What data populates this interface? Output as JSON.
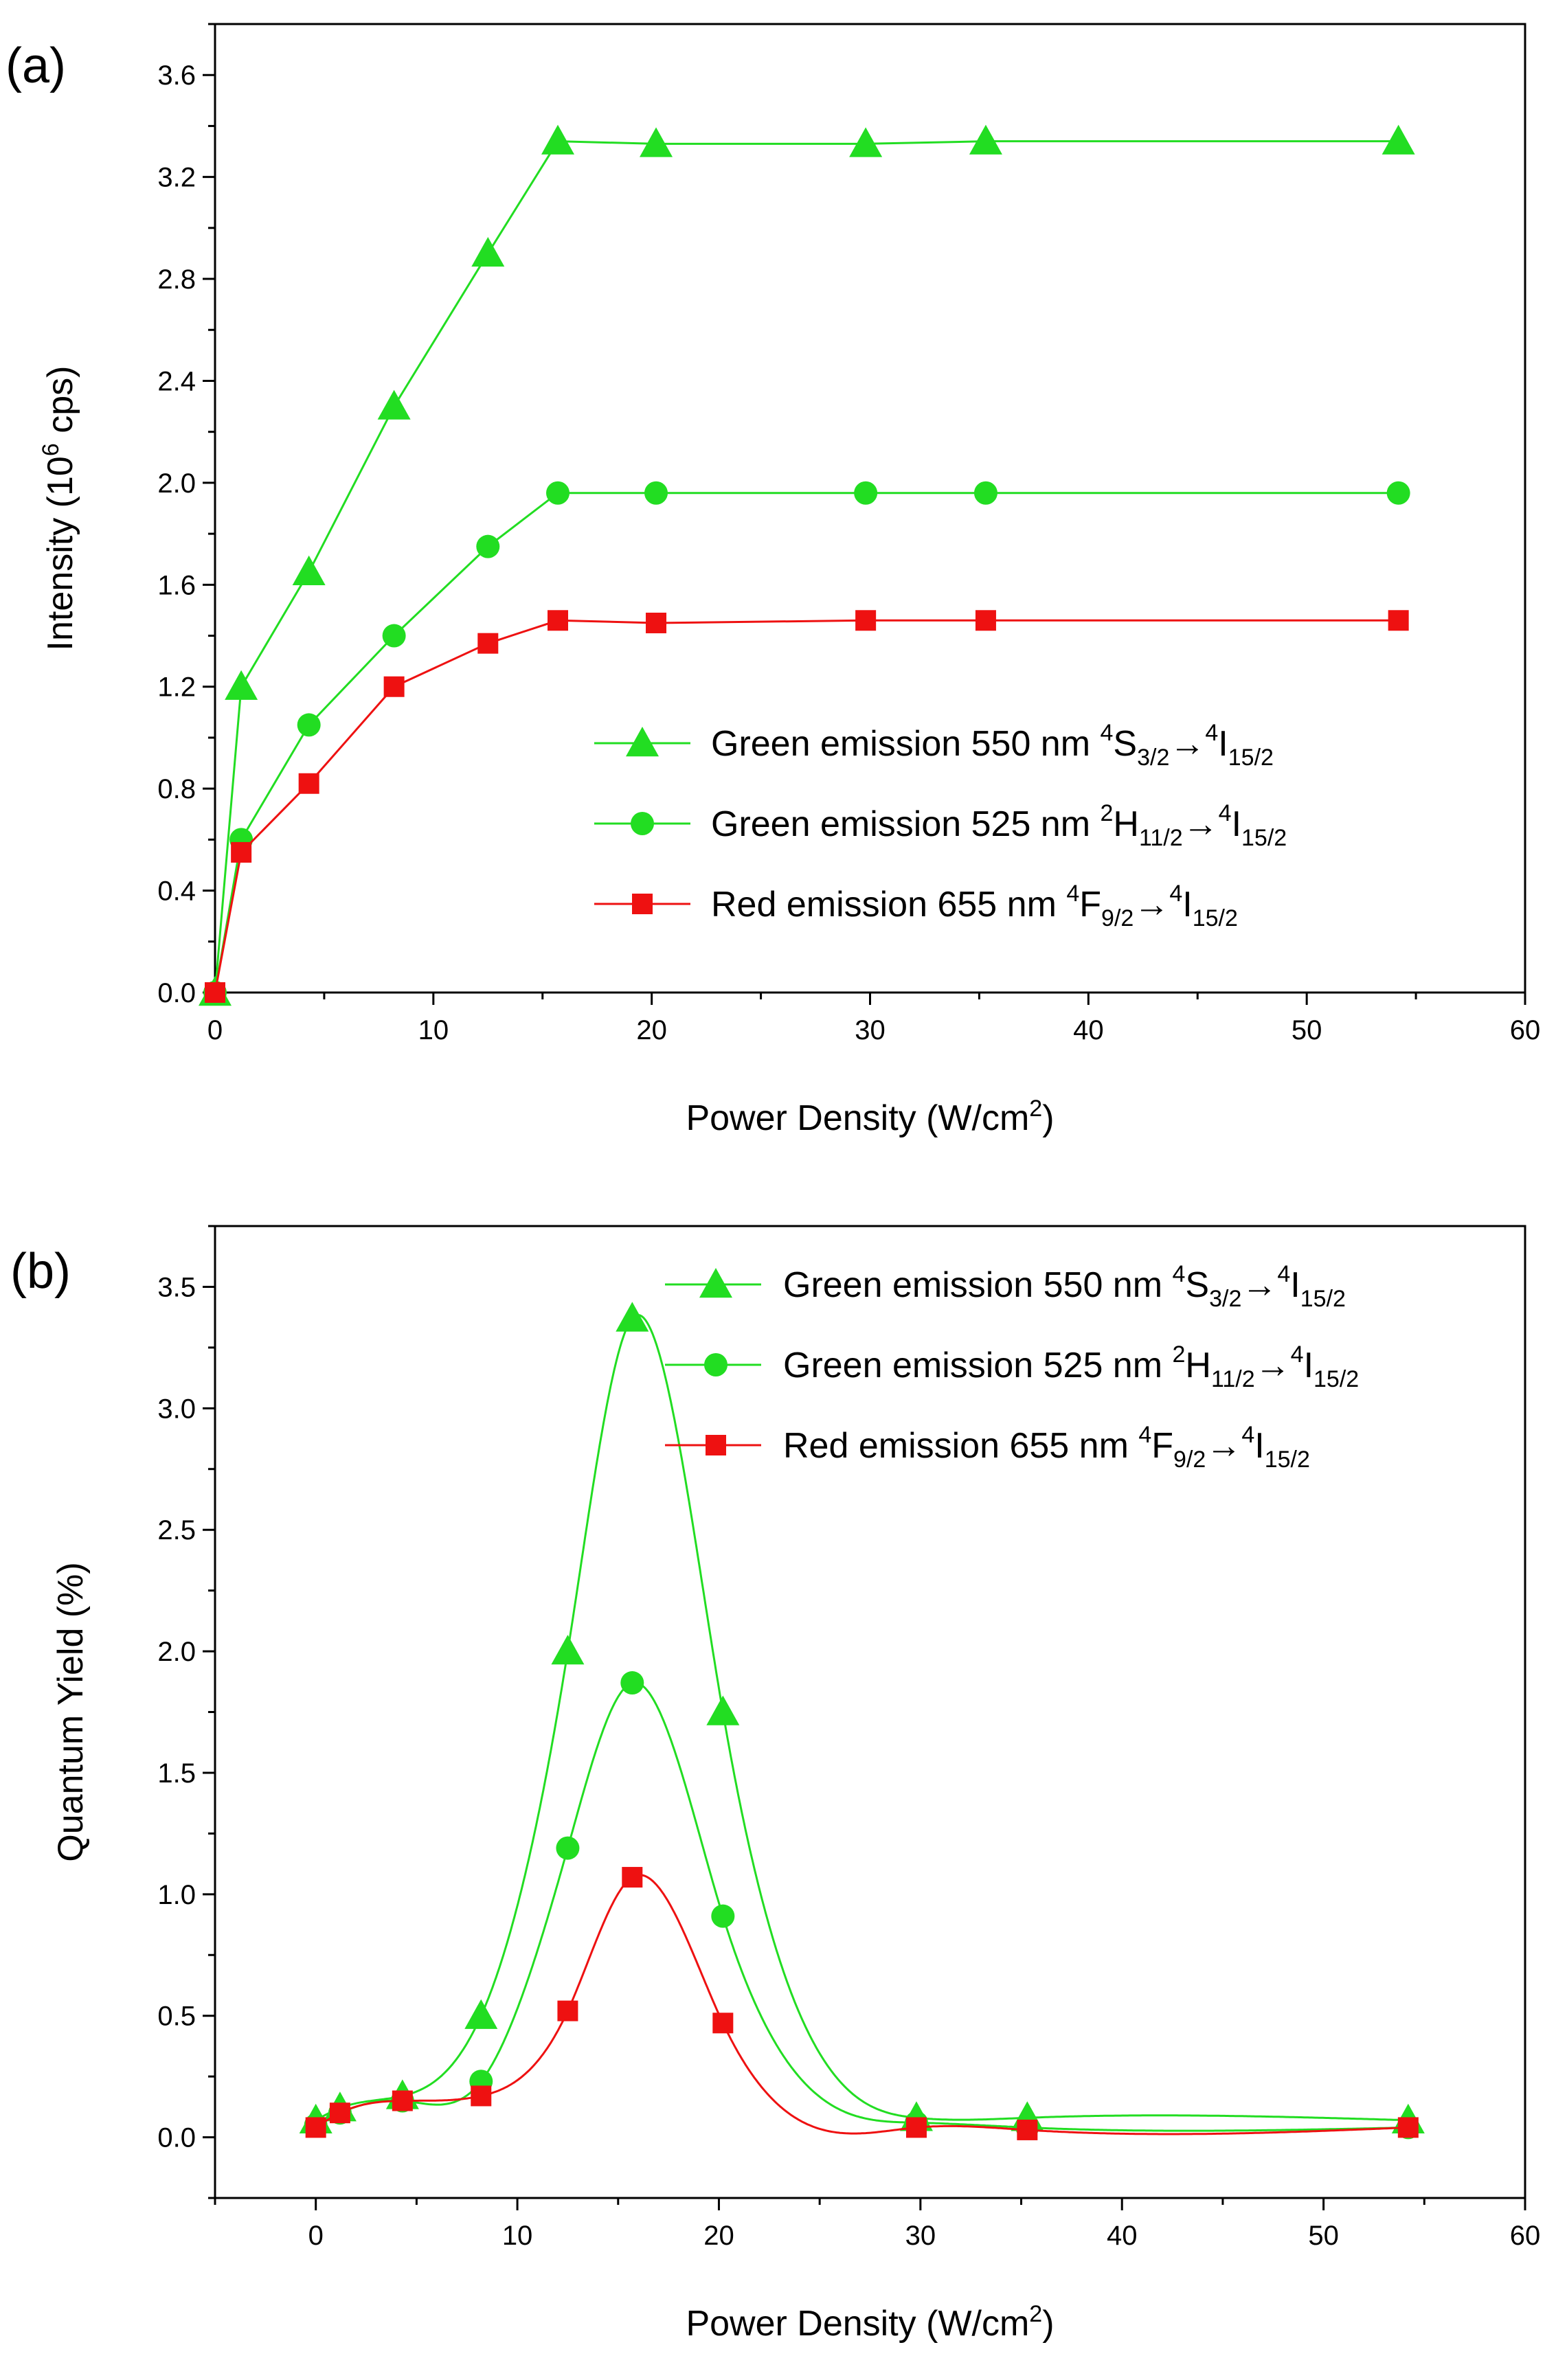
{
  "chart_data": [
    {
      "panel_label": "(a)",
      "type": "line",
      "title": "",
      "xlabel": {
        "main": "Power Density (W/cm",
        "sup": "2",
        "end": ")"
      },
      "ylabel": {
        "main": "Intensity (10",
        "sup": "6",
        "end": " cps)"
      },
      "xlim": [
        0,
        60
      ],
      "ylim": [
        0,
        3.8
      ],
      "xticks": [
        0,
        10,
        20,
        30,
        40,
        50,
        60
      ],
      "yticks": [
        0.0,
        0.4,
        0.8,
        1.2,
        1.6,
        2.0,
        2.4,
        2.8,
        3.2,
        3.6
      ],
      "ytick_labels": [
        "0.0",
        "0.4",
        "0.8",
        "1.2",
        "1.6",
        "2.0",
        "2.4",
        "2.8",
        "3.2",
        "3.6"
      ],
      "grid": false,
      "legend_position": "bottom-right",
      "smooth": false,
      "series": [
        {
          "legend": [
            {
              "t": "Green emission 550 nm "
            },
            {
              "t": "4",
              "s": "sup"
            },
            {
              "t": "S"
            },
            {
              "t": "3/2",
              "s": "sub"
            },
            {
              "t": "→"
            },
            {
              "t": "4",
              "s": "sup"
            },
            {
              "t": "I"
            },
            {
              "t": "15/2",
              "s": "sub"
            }
          ],
          "color": "#22dd22",
          "marker": "triangle",
          "x": [
            0,
            1.2,
            4.3,
            8.2,
            12.5,
            15.7,
            20.2,
            29.8,
            35.3,
            54.2
          ],
          "y": [
            0,
            1.2,
            1.65,
            2.3,
            2.9,
            3.34,
            3.33,
            3.33,
            3.34,
            3.34
          ]
        },
        {
          "legend": [
            {
              "t": "Green emission 525 nm "
            },
            {
              "t": "2",
              "s": "sup"
            },
            {
              "t": "H"
            },
            {
              "t": "11/2",
              "s": "sub"
            },
            {
              "t": "→"
            },
            {
              "t": "4",
              "s": "sup"
            },
            {
              "t": "I"
            },
            {
              "t": "15/2",
              "s": "sub"
            }
          ],
          "color": "#22dd22",
          "marker": "circle",
          "x": [
            0,
            1.2,
            4.3,
            8.2,
            12.5,
            15.7,
            20.2,
            29.8,
            35.3,
            54.2
          ],
          "y": [
            0,
            0.6,
            1.05,
            1.4,
            1.75,
            1.96,
            1.96,
            1.96,
            1.96,
            1.96
          ]
        },
        {
          "legend": [
            {
              "t": "Red emission 655 nm "
            },
            {
              "t": "4",
              "s": "sup"
            },
            {
              "t": "F"
            },
            {
              "t": "9/2",
              "s": "sub"
            },
            {
              "t": "→"
            },
            {
              "t": "4",
              "s": "sup"
            },
            {
              "t": "I"
            },
            {
              "t": "15/2",
              "s": "sub"
            }
          ],
          "color": "#ee1111",
          "marker": "square",
          "x": [
            0,
            1.2,
            4.3,
            8.2,
            12.5,
            15.7,
            20.2,
            29.8,
            35.3,
            54.2
          ],
          "y": [
            0,
            0.55,
            0.82,
            1.2,
            1.37,
            1.46,
            1.45,
            1.46,
            1.46,
            1.46
          ]
        }
      ]
    },
    {
      "panel_label": "(b)",
      "type": "line",
      "title": "",
      "xlabel": {
        "main": "Power Density (W/cm",
        "sup": "2",
        "end": ")"
      },
      "ylabel": {
        "main": "Quantum Yield (%)",
        "sup": "",
        "end": ""
      },
      "xlim": [
        -5,
        60
      ],
      "ylim": [
        -0.25,
        3.75
      ],
      "xticks": [
        0,
        10,
        20,
        30,
        40,
        50,
        60
      ],
      "yticks": [
        0.0,
        0.5,
        1.0,
        1.5,
        2.0,
        2.5,
        3.0,
        3.5
      ],
      "ytick_labels": [
        "0.0",
        "0.5",
        "1.0",
        "1.5",
        "2.0",
        "2.5",
        "3.0",
        "3.5"
      ],
      "grid": false,
      "legend_position": "top-right",
      "smooth": true,
      "series": [
        {
          "legend": [
            {
              "t": "Green emission 550 nm "
            },
            {
              "t": "4",
              "s": "sup"
            },
            {
              "t": "S"
            },
            {
              "t": "3/2",
              "s": "sub"
            },
            {
              "t": "→"
            },
            {
              "t": "4",
              "s": "sup"
            },
            {
              "t": "I"
            },
            {
              "t": "15/2",
              "s": "sub"
            }
          ],
          "color": "#22dd22",
          "marker": "triangle",
          "x": [
            0,
            1.2,
            4.3,
            8.2,
            12.5,
            15.7,
            20.2,
            29.8,
            35.3,
            54.2
          ],
          "y": [
            0.07,
            0.12,
            0.17,
            0.5,
            2.0,
            3.37,
            1.75,
            0.08,
            0.08,
            0.07
          ]
        },
        {
          "legend": [
            {
              "t": "Green emission 525 nm "
            },
            {
              "t": "2",
              "s": "sup"
            },
            {
              "t": "H"
            },
            {
              "t": "11/2",
              "s": "sub"
            },
            {
              "t": "→"
            },
            {
              "t": "4",
              "s": "sup"
            },
            {
              "t": "I"
            },
            {
              "t": "15/2",
              "s": "sub"
            }
          ],
          "color": "#22dd22",
          "marker": "circle",
          "x": [
            0,
            1.2,
            4.3,
            8.2,
            12.5,
            15.7,
            20.2,
            29.8,
            35.3,
            54.2
          ],
          "y": [
            0.05,
            0.1,
            0.15,
            0.23,
            1.19,
            1.87,
            0.91,
            0.06,
            0.04,
            0.04
          ]
        },
        {
          "legend": [
            {
              "t": "Red emission 655 nm "
            },
            {
              "t": "4",
              "s": "sup"
            },
            {
              "t": "F"
            },
            {
              "t": "9/2",
              "s": "sub"
            },
            {
              "t": "→"
            },
            {
              "t": "4",
              "s": "sup"
            },
            {
              "t": "I"
            },
            {
              "t": "15/2",
              "s": "sub"
            }
          ],
          "color": "#ee1111",
          "marker": "square",
          "x": [
            0,
            1.2,
            4.3,
            8.2,
            12.5,
            15.7,
            20.2,
            29.8,
            35.3,
            54.2
          ],
          "y": [
            0.04,
            0.1,
            0.15,
            0.17,
            0.52,
            1.07,
            0.47,
            0.04,
            0.03,
            0.04
          ]
        }
      ]
    }
  ]
}
